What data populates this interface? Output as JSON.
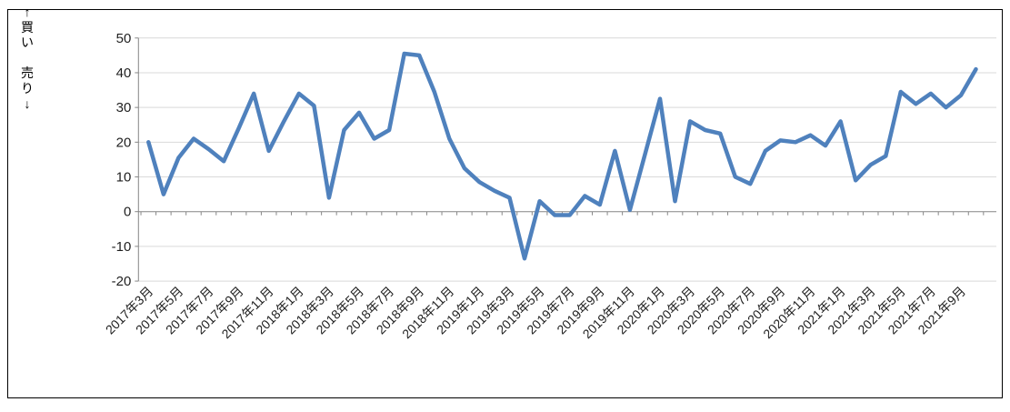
{
  "chart": {
    "ylabel_vertical": "↑買い　売り↓",
    "background_color": "#ffffff",
    "border_color": "#000000"
  },
  "chart_data": {
    "type": "line",
    "title": "",
    "series_name": "",
    "x": [
      "2017年3月",
      "2017年4月",
      "2017年5月",
      "2017年6月",
      "2017年7月",
      "2017年8月",
      "2017年9月",
      "2017年10月",
      "2017年11月",
      "2017年12月",
      "2018年1月",
      "2018年2月",
      "2018年3月",
      "2018年4月",
      "2018年5月",
      "2018年6月",
      "2018年7月",
      "2018年8月",
      "2018年9月",
      "2018年10月",
      "2018年11月",
      "2018年12月",
      "2019年1月",
      "2019年2月",
      "2019年3月",
      "2019年4月",
      "2019年5月",
      "2019年6月",
      "2019年7月",
      "2019年8月",
      "2019年9月",
      "2019年10月",
      "2019年11月",
      "2019年12月",
      "2020年1月",
      "2020年2月",
      "2020年3月",
      "2020年4月",
      "2020年5月",
      "2020年6月",
      "2020年7月",
      "2020年8月",
      "2020年9月",
      "2020年10月",
      "2020年11月",
      "2020年12月",
      "2021年1月",
      "2021年2月",
      "2021年3月",
      "2021年4月",
      "2021年5月",
      "2021年6月",
      "2021年7月",
      "2021年8月",
      "2021年9月",
      "2021年10月"
    ],
    "values": [
      20,
      5,
      15.5,
      21,
      18,
      14.5,
      24,
      34,
      17.5,
      26,
      34,
      30.5,
      4,
      23.5,
      28.5,
      21,
      23.5,
      45.5,
      45,
      34.5,
      21,
      12.5,
      8.5,
      6,
      4,
      -13.5,
      3,
      -1,
      -1,
      4.5,
      2,
      17.5,
      0.5,
      16.5,
      32.5,
      3,
      26,
      23.5,
      22.5,
      10,
      8,
      17.5,
      20.5,
      20,
      22,
      19,
      26,
      9,
      13.5,
      16,
      34.5,
      31,
      34,
      30,
      33.5,
      41
    ],
    "xtick_every": 2,
    "yticks": [
      50,
      40,
      30,
      20,
      10,
      0,
      -10,
      -20
    ],
    "ylim": [
      -20,
      50
    ],
    "grid": true,
    "legend": "none",
    "line_color": "#4F81BD",
    "grid_color": "#D9D9D9",
    "axis_color": "#868686",
    "tick_label_color": "#1f1f1f"
  }
}
